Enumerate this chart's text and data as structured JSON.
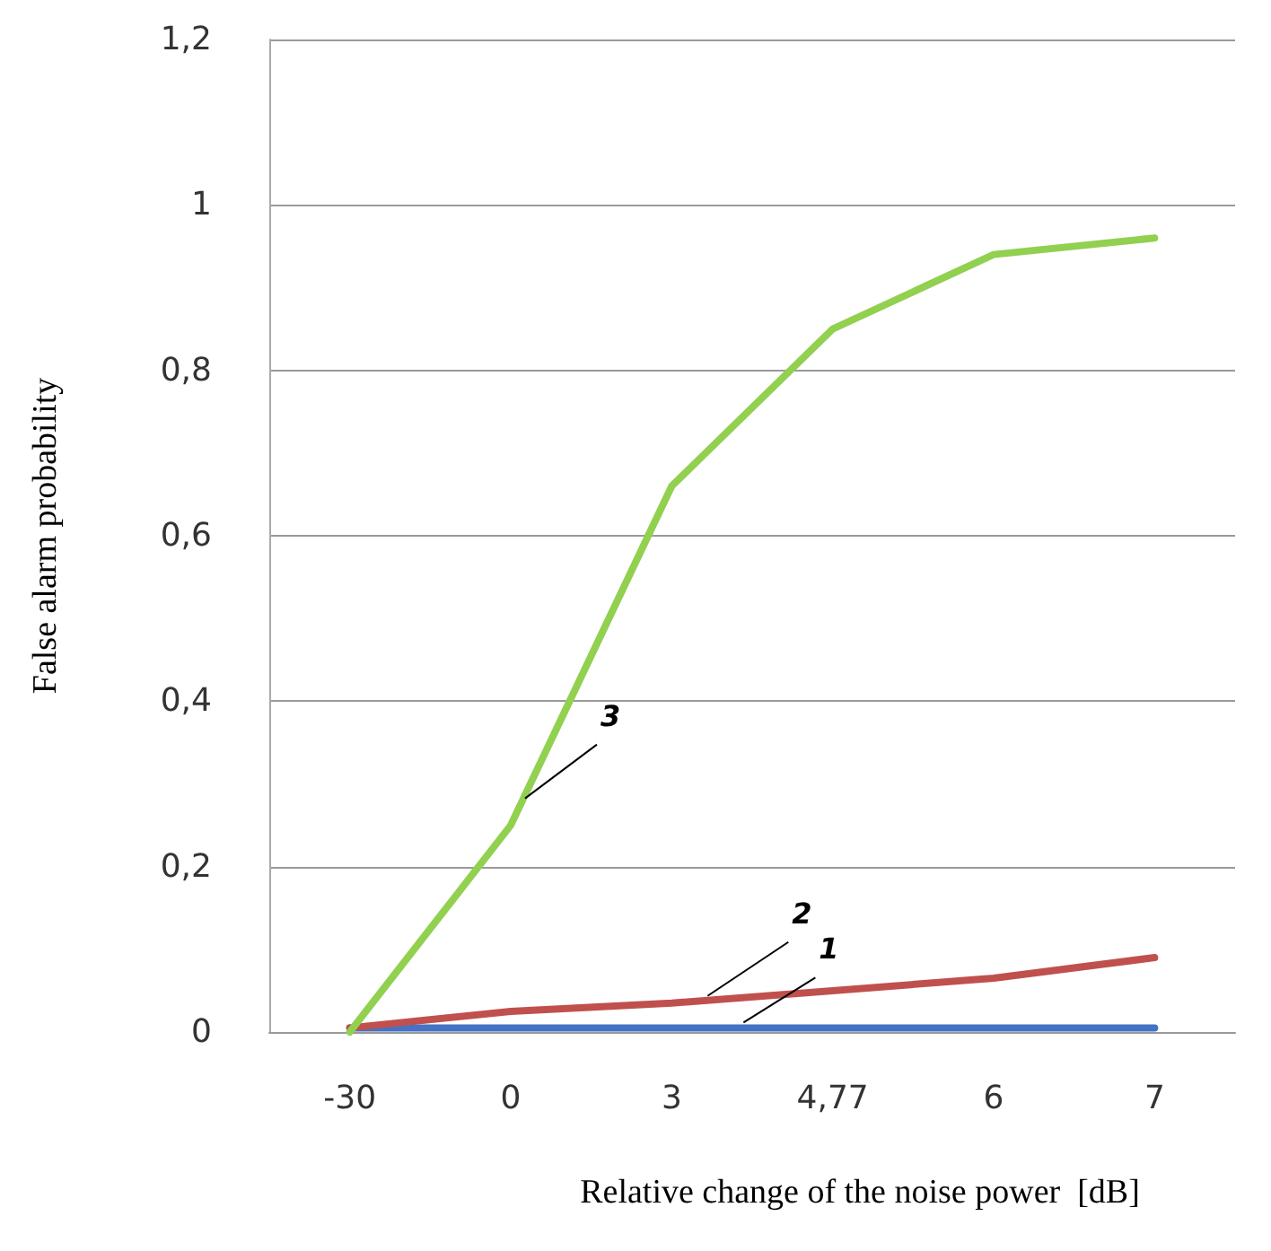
{
  "chart_data": {
    "type": "line",
    "xlabel": "Relative change of the noise power  [dB]",
    "ylabel": "False alarm probability",
    "categories": [
      "-30",
      "0",
      "3",
      "4,77",
      "6",
      "7"
    ],
    "series": [
      {
        "name": "1",
        "color": "#4472c4",
        "values": [
          0.005,
          0.005,
          0.005,
          0.005,
          0.005,
          0.005
        ]
      },
      {
        "name": "2",
        "color": "#c0504d",
        "values": [
          0.005,
          0.025,
          0.035,
          0.05,
          0.065,
          0.09
        ]
      },
      {
        "name": "3",
        "color": "#92d050",
        "values": [
          0,
          0.25,
          0.66,
          0.85,
          0.94,
          0.96
        ]
      }
    ],
    "ylim": [
      0,
      1.2
    ],
    "yticks": [
      0,
      {
        "value": 0.2,
        "label": "0,2"
      },
      {
        "value": 0.4,
        "label": "0,4"
      },
      {
        "value": 0.6,
        "label": "0,6"
      },
      {
        "value": 0.8,
        "label": "0,8"
      },
      1,
      {
        "value": 1.2,
        "label": "1,2"
      }
    ],
    "grid": "y",
    "legend": false,
    "marker": "none",
    "line_style": "solid"
  }
}
